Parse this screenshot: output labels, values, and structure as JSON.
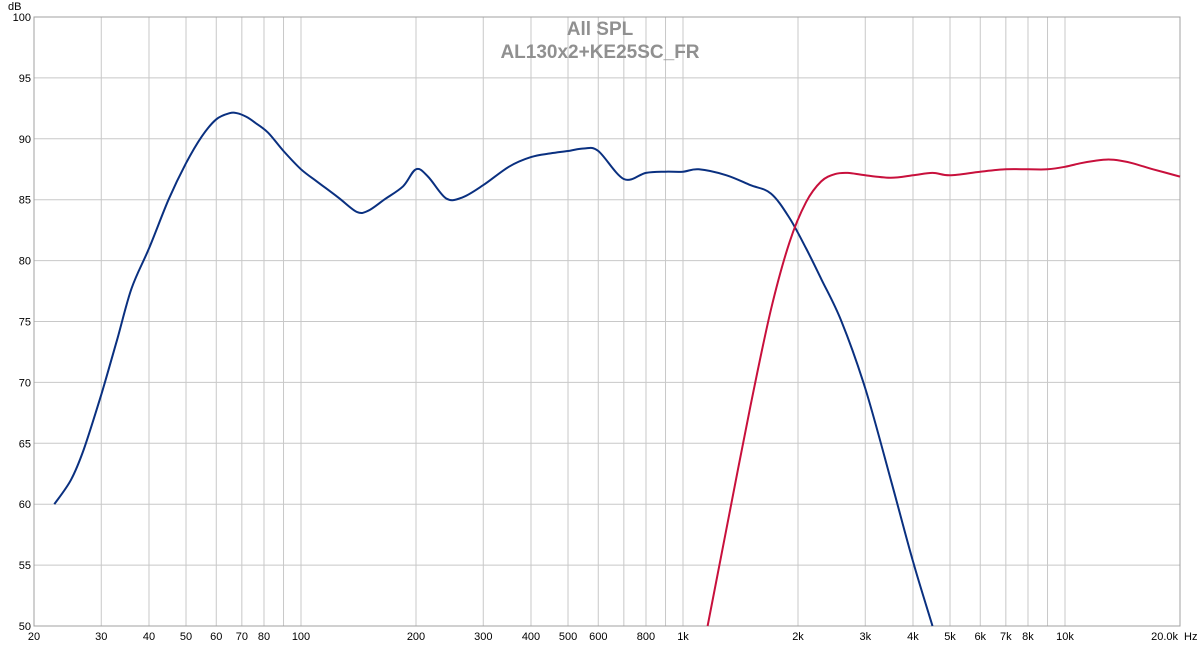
{
  "chart_data": {
    "type": "line",
    "title": "All SPL",
    "subtitle": "AL130x2+KE25SC_FR",
    "ylabel": "dB",
    "xlabel": "Hz",
    "x_scale": "log",
    "xlim": [
      20,
      20000
    ],
    "ylim": [
      50,
      100
    ],
    "grid": true,
    "x_tick_labels": [
      {
        "v": 20,
        "t": "20"
      },
      {
        "v": 30,
        "t": "30"
      },
      {
        "v": 40,
        "t": "40"
      },
      {
        "v": 50,
        "t": "50"
      },
      {
        "v": 60,
        "t": "60"
      },
      {
        "v": 70,
        "t": "70"
      },
      {
        "v": 80,
        "t": "80"
      },
      {
        "v": 100,
        "t": "100"
      },
      {
        "v": 200,
        "t": "200"
      },
      {
        "v": 300,
        "t": "300"
      },
      {
        "v": 400,
        "t": "400"
      },
      {
        "v": 500,
        "t": "500"
      },
      {
        "v": 600,
        "t": "600"
      },
      {
        "v": 800,
        "t": "800"
      },
      {
        "v": 1000,
        "t": "1k"
      },
      {
        "v": 2000,
        "t": "2k"
      },
      {
        "v": 3000,
        "t": "3k"
      },
      {
        "v": 4000,
        "t": "4k"
      },
      {
        "v": 5000,
        "t": "5k"
      },
      {
        "v": 6000,
        "t": "6k"
      },
      {
        "v": 7000,
        "t": "7k"
      },
      {
        "v": 8000,
        "t": "8k"
      },
      {
        "v": 10000,
        "t": "10k"
      },
      {
        "v": 20000,
        "t": "20.0k"
      }
    ],
    "y_tick_labels": [
      "50",
      "55",
      "60",
      "65",
      "70",
      "75",
      "80",
      "85",
      "90",
      "95",
      "100"
    ],
    "series": [
      {
        "color": "#0a3080",
        "x": [
          22.6,
          25,
          27,
          30,
          33,
          36,
          40,
          45,
          50,
          55,
          60,
          65,
          68,
          72,
          76,
          82,
          90,
          100,
          110,
          125,
          140,
          150,
          165,
          185,
          200,
          215,
          240,
          265,
          300,
          350,
          400,
          450,
          500,
          550,
          600,
          700,
          800,
          900,
          1000,
          1100,
          1300,
          1500,
          1700,
          1900,
          2100,
          2300,
          2600,
          3000,
          3500,
          4000,
          4500
        ],
        "y": [
          60,
          62,
          64.5,
          69,
          73.5,
          77.7,
          81,
          85,
          88,
          90.2,
          91.6,
          92.1,
          92.1,
          91.8,
          91.3,
          90.5,
          89,
          87.5,
          86.5,
          85.2,
          84,
          84.1,
          85,
          86.1,
          87.5,
          86.9,
          85.1,
          85.2,
          86.2,
          87.7,
          88.5,
          88.8,
          89,
          89.2,
          89,
          86.7,
          87.2,
          87.3,
          87.3,
          87.5,
          87,
          86.2,
          85.5,
          83.5,
          81,
          78.5,
          75,
          69.5,
          62,
          55.3,
          50
        ]
      },
      {
        "color": "#c8103c",
        "x": [
          1160,
          1300,
          1500,
          1700,
          1900,
          2100,
          2300,
          2500,
          2700,
          3000,
          3500,
          4000,
          4500,
          5000,
          6000,
          7000,
          8000,
          9000,
          10000,
          11000,
          12000,
          13000,
          14000,
          15000,
          17000,
          20000
        ],
        "y": [
          50,
          58,
          68,
          76,
          81.5,
          84.8,
          86.5,
          87.1,
          87.2,
          87,
          86.8,
          87,
          87.2,
          87,
          87.3,
          87.5,
          87.5,
          87.5,
          87.7,
          88,
          88.2,
          88.3,
          88.2,
          88,
          87.5,
          86.9
        ]
      }
    ]
  }
}
